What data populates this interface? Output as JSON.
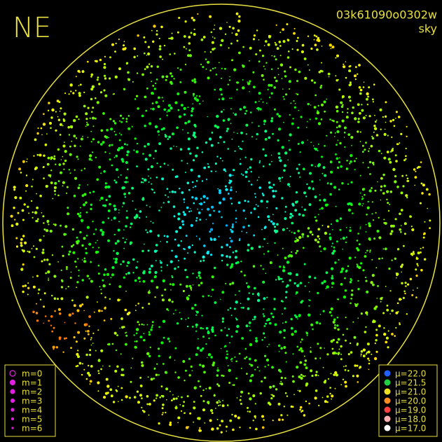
{
  "corner_label": "NE",
  "frame_id": "03k61090o0302w",
  "frame_kind": "sky",
  "magnitude_legend": [
    {
      "label": "m=0",
      "radius": 4,
      "hollow": true
    },
    {
      "label": "m=1",
      "radius": 3.5
    },
    {
      "label": "m=2",
      "radius": 3
    },
    {
      "label": "m=3",
      "radius": 2.5
    },
    {
      "label": "m=4",
      "radius": 2
    },
    {
      "label": "m=5",
      "radius": 1.5
    },
    {
      "label": "m=6",
      "radius": 1
    }
  ],
  "magnitude_color": "#e020e0",
  "brightness_legend": [
    {
      "label": "μ=22.0",
      "color": "#2060ff"
    },
    {
      "label": "μ=21.5",
      "color": "#20d040"
    },
    {
      "label": "μ=21.0",
      "color": "#f0e020"
    },
    {
      "label": "μ=20.0",
      "color": "#ff8c20"
    },
    {
      "label": "μ=19.0",
      "color": "#ff4040"
    },
    {
      "label": "μ=18.0",
      "color": "#ffb0b0"
    },
    {
      "label": "μ=17.0",
      "color": "#ffffff"
    }
  ]
}
